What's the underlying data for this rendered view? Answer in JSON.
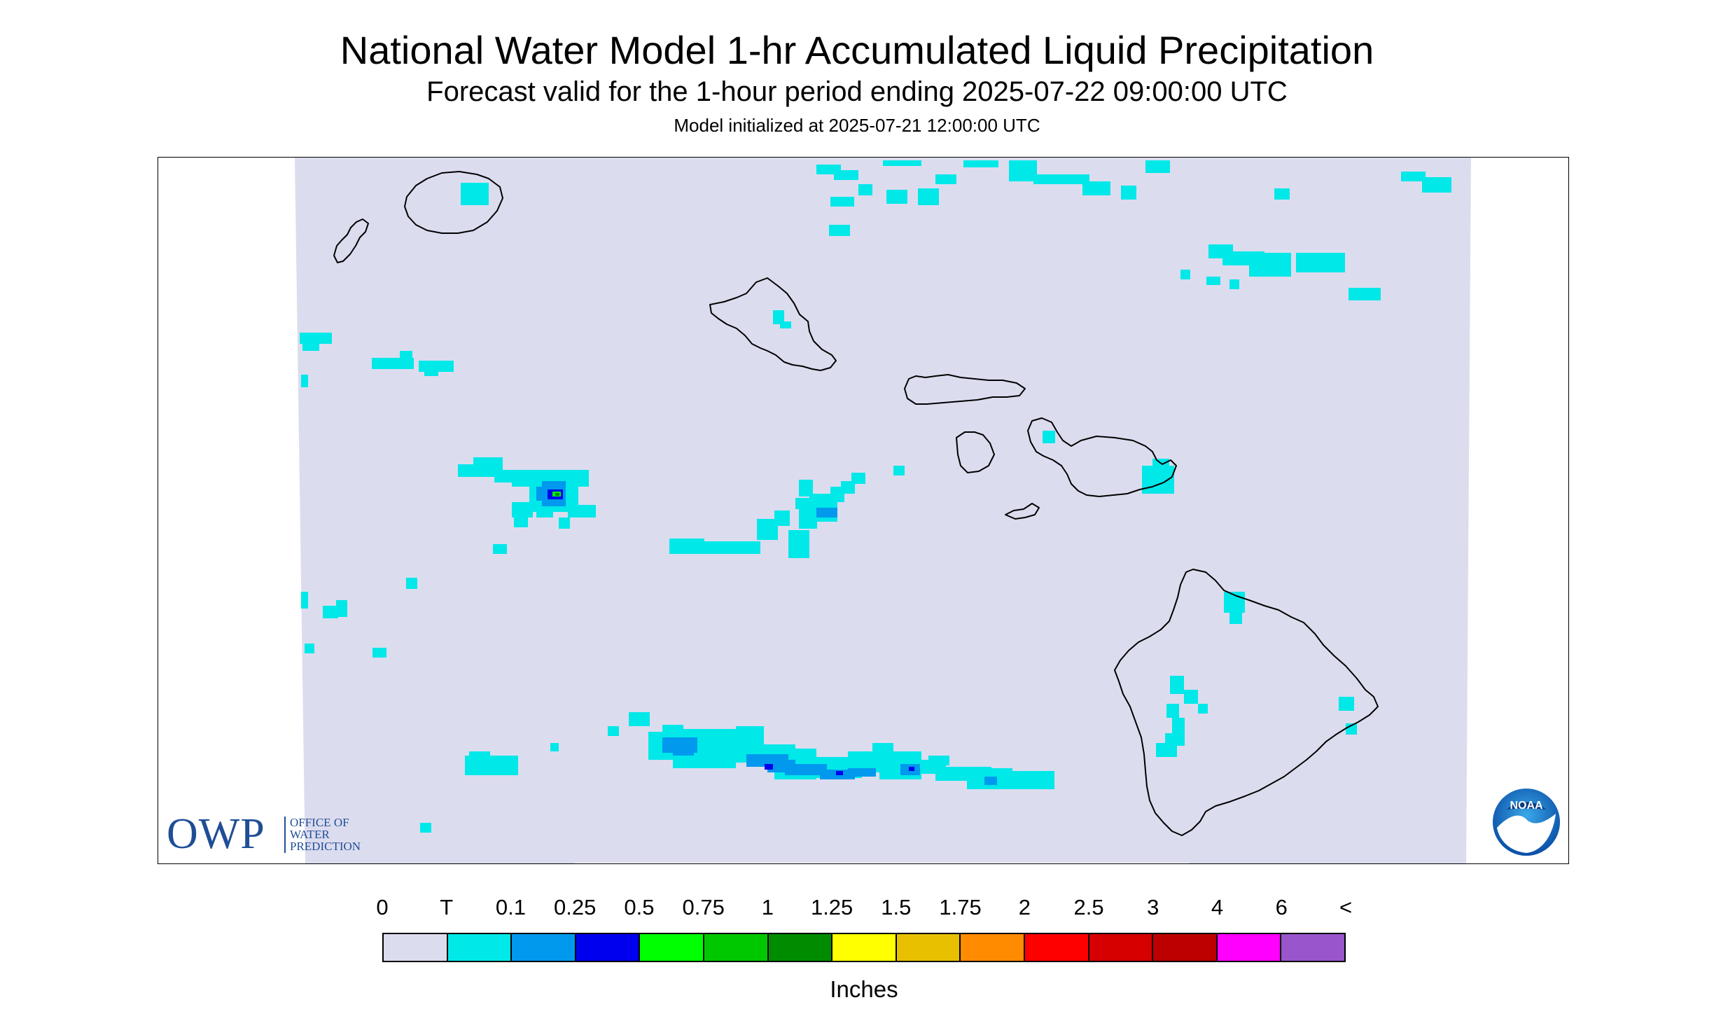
{
  "header": {
    "title": "National Water Model 1-hr Accumulated Liquid Precipitation",
    "subtitle": "Forecast valid for the 1-hour period ending 2025-07-22 09:00:00 UTC",
    "init": "Model initialized at 2025-07-21 12:00:00 UTC"
  },
  "logos": {
    "owp_abbrev": "OWP",
    "owp_line1": "OFFICE OF",
    "owp_line2": "WATER",
    "owp_line3": "PREDICTION",
    "noaa": "NOAA"
  },
  "map": {
    "region": "Hawaii",
    "background_color": "#dcdcef",
    "coastline_color": "#000000"
  },
  "legend": {
    "labels": [
      "0",
      "T",
      "0.1",
      "0.25",
      "0.5",
      "0.75",
      "1",
      "1.25",
      "1.5",
      "1.75",
      "2",
      "2.5",
      "3",
      "4",
      "6",
      "<"
    ],
    "colors": [
      "#dcdcef",
      "#00e8e8",
      "#0099ee",
      "#0000ee",
      "#00ff00",
      "#00c800",
      "#008c00",
      "#ffff00",
      "#e8c000",
      "#ff8c00",
      "#ff0000",
      "#d60000",
      "#bc0000",
      "#ff00ff",
      "#9955cc"
    ],
    "units": "Inches"
  },
  "chart_data": {
    "type": "heatmap",
    "title": "National Water Model 1-hr Accumulated Liquid Precipitation",
    "units": "Inches",
    "bin_edges": [
      "0",
      "T",
      "0.1",
      "0.25",
      "0.5",
      "0.75",
      "1",
      "1.25",
      "1.5",
      "1.75",
      "2",
      "2.5",
      "3",
      "4",
      "6",
      "<"
    ],
    "observed_classes": [
      "0",
      "T",
      "0.1",
      "0.25",
      "0.5"
    ]
  }
}
